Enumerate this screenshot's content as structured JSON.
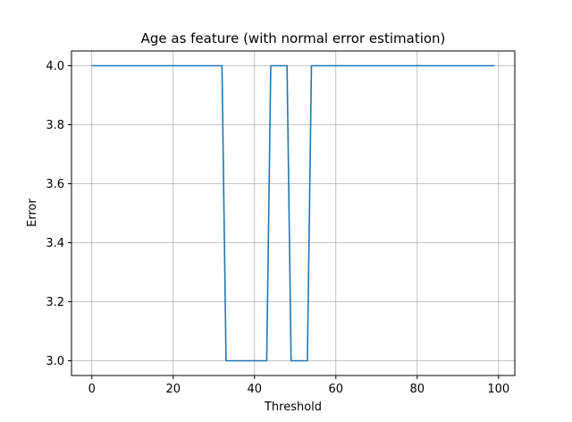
{
  "chart_data": {
    "type": "line",
    "title": "Age as feature (with normal error estimation)",
    "xlabel": "Threshold",
    "ylabel": "Error",
    "xlim": [
      -5,
      104
    ],
    "ylim": [
      2.95,
      4.05
    ],
    "xticks": [
      0,
      20,
      40,
      60,
      80,
      100
    ],
    "yticks": [
      3.0,
      3.2,
      3.4,
      3.6,
      3.8,
      4.0
    ],
    "xtick_labels": [
      "0",
      "20",
      "40",
      "60",
      "80",
      "100"
    ],
    "ytick_labels": [
      "3.0",
      "3.2",
      "3.4",
      "3.6",
      "3.8",
      "4.0"
    ],
    "grid": true,
    "series": [
      {
        "color": "#1f77b4",
        "points": [
          [
            0,
            4.0
          ],
          [
            32,
            4.0
          ],
          [
            33,
            3.0
          ],
          [
            43,
            3.0
          ],
          [
            44,
            4.0
          ],
          [
            48,
            4.0
          ],
          [
            49,
            3.0
          ],
          [
            53,
            3.0
          ],
          [
            54,
            4.0
          ],
          [
            99,
            4.0
          ]
        ]
      }
    ]
  }
}
